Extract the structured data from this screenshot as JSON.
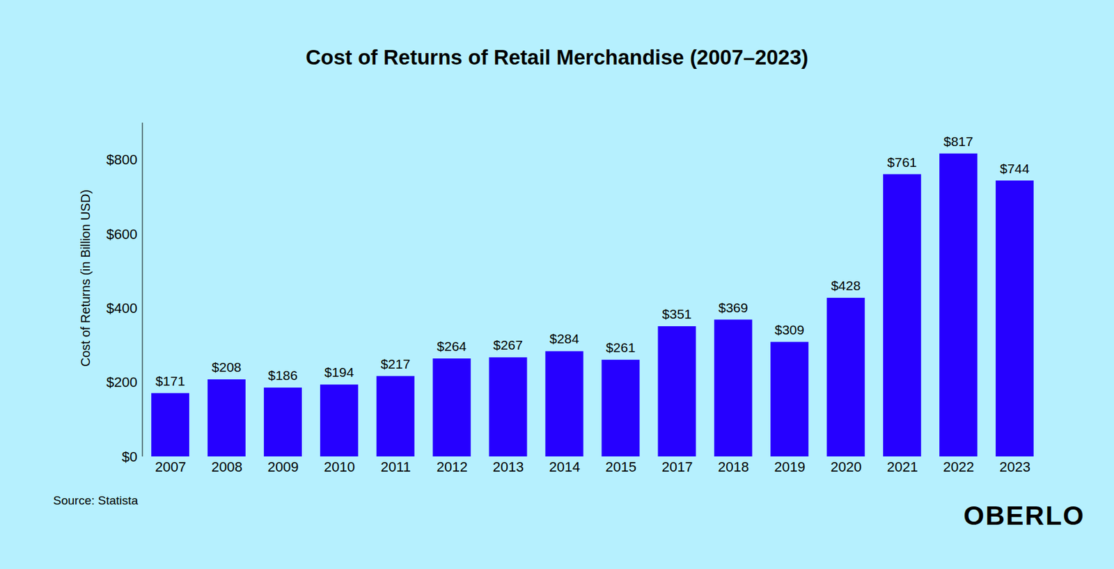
{
  "chart_data": {
    "type": "bar",
    "title": "Cost of Returns of Retail Merchandise (2007–2023)",
    "y_label": "Cost of Returns (in Billion USD)",
    "annotations": [
      "Source: Statista",
      "OBERLO"
    ],
    "categories": [
      "2007",
      "2008",
      "2009",
      "2010",
      "2011",
      "2012",
      "2013",
      "2014",
      "2015",
      "2017",
      "2018",
      "2019",
      "2020",
      "2021",
      "2022",
      "2023"
    ],
    "values": [
      171,
      208,
      186,
      194,
      217,
      264,
      267,
      284,
      261,
      351,
      369,
      309,
      428,
      761,
      817,
      744
    ],
    "value_labels": [
      "$171",
      "$208",
      "$186",
      "$194",
      "$217",
      "$264",
      "$267",
      "$284",
      "$261",
      "$351",
      "$369",
      "$309",
      "$428",
      "$761",
      "$817",
      "$744"
    ],
    "color": "#2600ff",
    "ylim": [
      0,
      900
    ],
    "yticks": [
      {
        "value": 0,
        "label": "$0"
      },
      {
        "value": 200,
        "label": "$200"
      },
      {
        "value": 400,
        "label": "$400"
      },
      {
        "value": 600,
        "label": "$600"
      },
      {
        "value": 800,
        "label": "$800"
      }
    ],
    "grid": false,
    "data_labels": true
  }
}
